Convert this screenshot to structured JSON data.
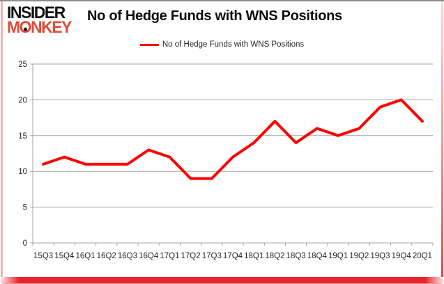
{
  "logo": {
    "line1": "INSIDER",
    "line2": "MONKEY",
    "accent_color": "#dc4c3a"
  },
  "header": {
    "title": "No of Hedge Funds with WNS Positions"
  },
  "legend": {
    "label": "No of Hedge Funds with WNS Positions",
    "line_color": "#ff0000"
  },
  "frame": {
    "top_color": "#8c8c8c",
    "side_color": "#ec9f98",
    "bottom_bar_color": "#e8232a"
  },
  "chart_data": {
    "type": "line",
    "title": "No of Hedge Funds with WNS Positions",
    "categories": [
      "15Q3",
      "15Q4",
      "16Q1",
      "16Q2",
      "16Q3",
      "16Q4",
      "17Q1",
      "17Q2",
      "17Q3",
      "17Q4",
      "18Q1",
      "18Q2",
      "18Q3",
      "18Q4",
      "19Q1",
      "19Q2",
      "19Q3",
      "19Q4",
      "20Q1"
    ],
    "series": [
      {
        "name": "No of Hedge Funds with WNS Positions",
        "color": "#ff0000",
        "values": [
          11,
          12,
          11,
          11,
          11,
          13,
          12,
          9,
          9,
          12,
          14,
          17,
          14,
          16,
          15,
          16,
          19,
          20,
          17
        ]
      }
    ],
    "xlabel": "",
    "ylabel": "",
    "ylim": [
      0,
      25
    ],
    "yticks": [
      0,
      5,
      10,
      15,
      20,
      25
    ],
    "grid": true,
    "gridline_color": "#a3a3a3",
    "axis_color": "#a3a3a3",
    "legend_position": "top-center"
  }
}
